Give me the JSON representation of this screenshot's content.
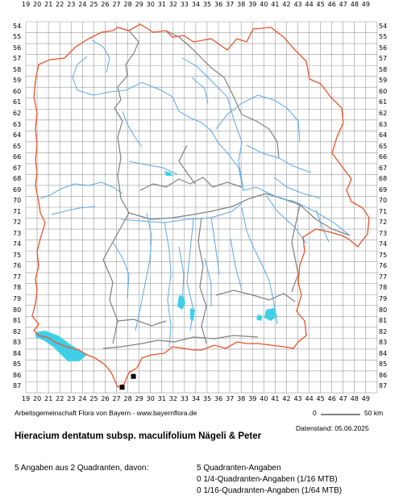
{
  "map": {
    "x_labels": [
      "19",
      "20",
      "21",
      "22",
      "23",
      "24",
      "25",
      "26",
      "27",
      "28",
      "29",
      "30",
      "31",
      "32",
      "33",
      "34",
      "35",
      "36",
      "37",
      "38",
      "39",
      "40",
      "41",
      "42",
      "43",
      "44",
      "45",
      "46",
      "47",
      "48",
      "49"
    ],
    "y_labels": [
      "54",
      "55",
      "56",
      "57",
      "58",
      "59",
      "60",
      "61",
      "62",
      "63",
      "64",
      "65",
      "66",
      "67",
      "68",
      "69",
      "70",
      "71",
      "72",
      "73",
      "74",
      "75",
      "76",
      "77",
      "78",
      "79",
      "80",
      "81",
      "82",
      "83",
      "84",
      "85",
      "86",
      "87"
    ],
    "colors": {
      "grid": "#999999",
      "state_border": "#e8542a",
      "district_border": "#808080",
      "rivers": "#5aa9e6",
      "lakes": "#3fd0e8",
      "marker": "#000000"
    },
    "occurrences": [
      {
        "grid_x": "27",
        "grid_y": "87"
      },
      {
        "grid_x": "28",
        "grid_y": "86"
      }
    ]
  },
  "footer": {
    "credit": "Arbeitsgemeinschaft Flora von Bayern - www.bayernflora.de",
    "scale_start": "0",
    "scale_end": "50 km",
    "date": "Datenstand: 05.06.2025",
    "title": "Hieracium dentatum subsp. maculifolium Nägeli & Peter",
    "summary": "5 Angaben aus 2 Quadranten, davon:",
    "stats": [
      "5 Quadranten-Angaben",
      "0 1/4-Quadranten-Angaben (1/16 MTB)",
      "0 1/16-Quadranten-Angaben (1/64 MTB)"
    ]
  }
}
